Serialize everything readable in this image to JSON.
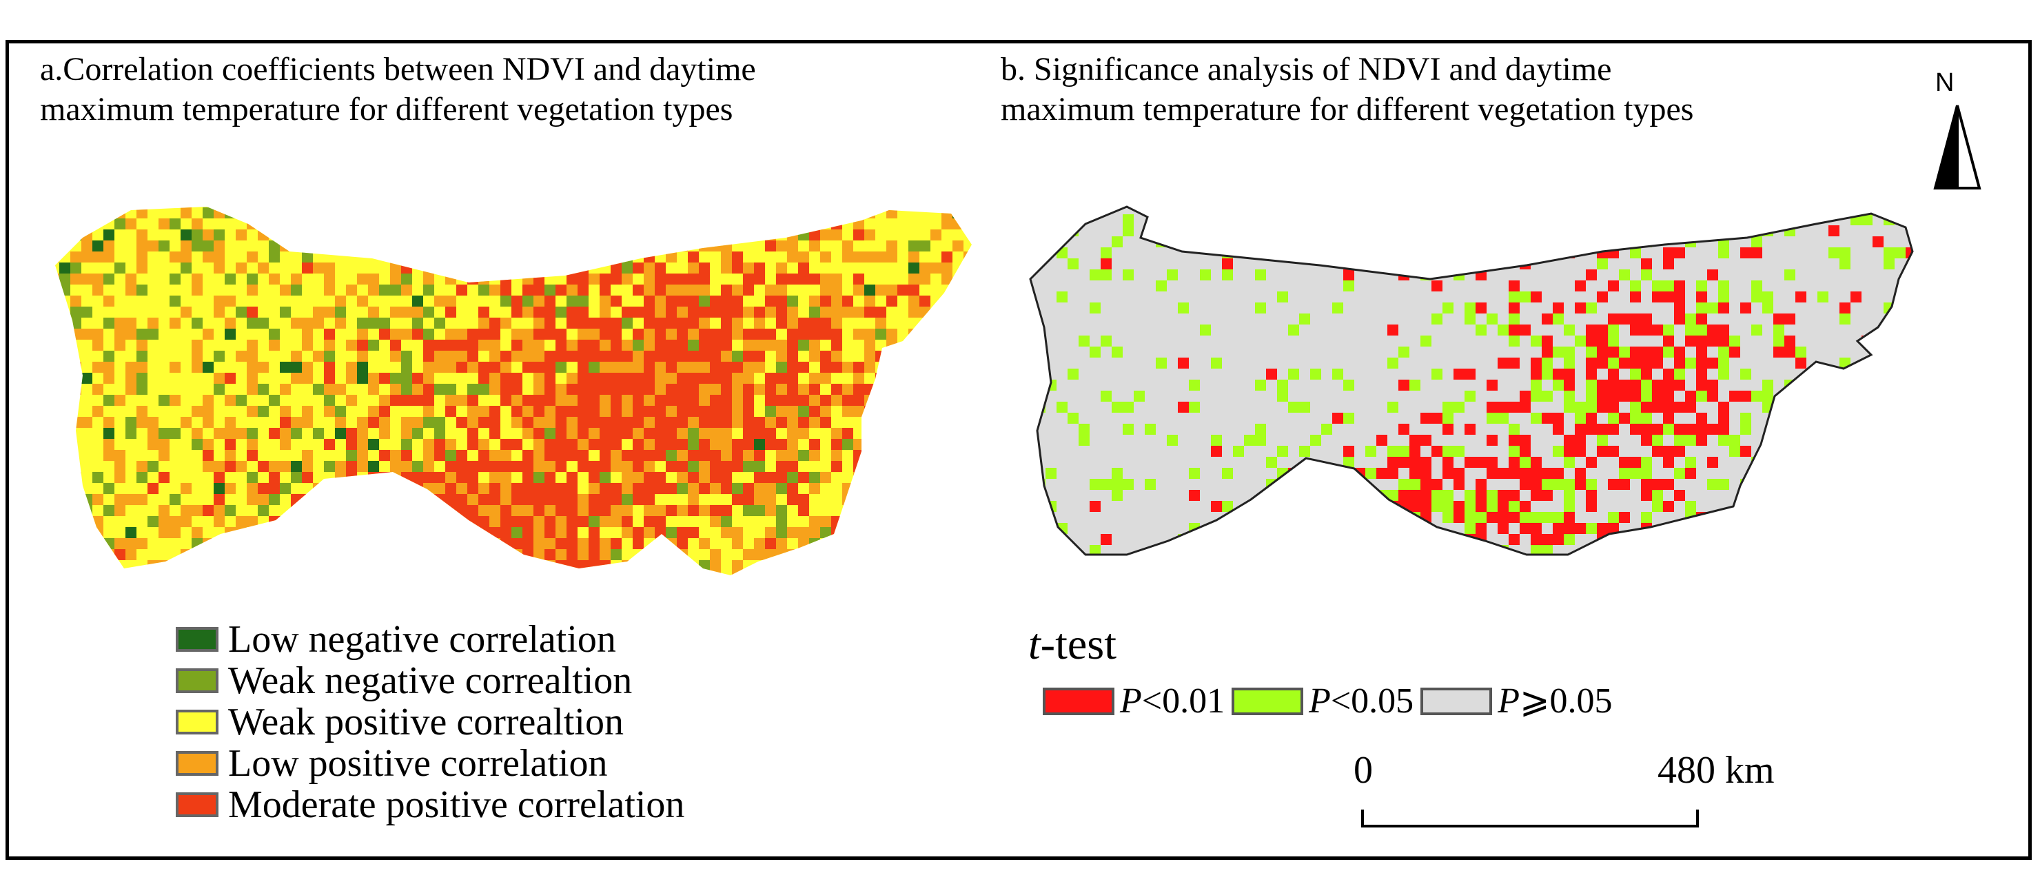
{
  "panel_a": {
    "title_line1": "a.Correlation coefficients between NDVI and  daytime",
    "title_line2": "maximum temperature for different vegetation types",
    "legend": [
      {
        "label": "Low negative correlation",
        "color": "#1f6a1a"
      },
      {
        "label": "Weak negative correaltion",
        "color": "#7ca51e"
      },
      {
        "label": "Weak positive correaltion",
        "color": "#ffff33"
      },
      {
        "label": "Low positive correlation",
        "color": "#f7a21b"
      },
      {
        "label": "Moderate positive correlation",
        "color": "#ef3d15"
      }
    ]
  },
  "panel_b": {
    "title_line1": "b. Significance analysis of NDVI and daytime",
    "title_line2": "maximum temperature for different vegetation types",
    "legend_title_italic": "t",
    "legend_title_rest": "-test",
    "legend": [
      {
        "p": "P",
        "label": "<0.01",
        "color": "#ff1414"
      },
      {
        "p": "P",
        "label": "<0.05",
        "color": "#a6ff1a"
      },
      {
        "p": "P",
        "label": "⩾0.05",
        "color": "#dcdcdc"
      }
    ]
  },
  "north_label": "N",
  "north_icon": "north-arrow-icon",
  "scale_bar": {
    "start": "0",
    "end": "480 km"
  }
}
